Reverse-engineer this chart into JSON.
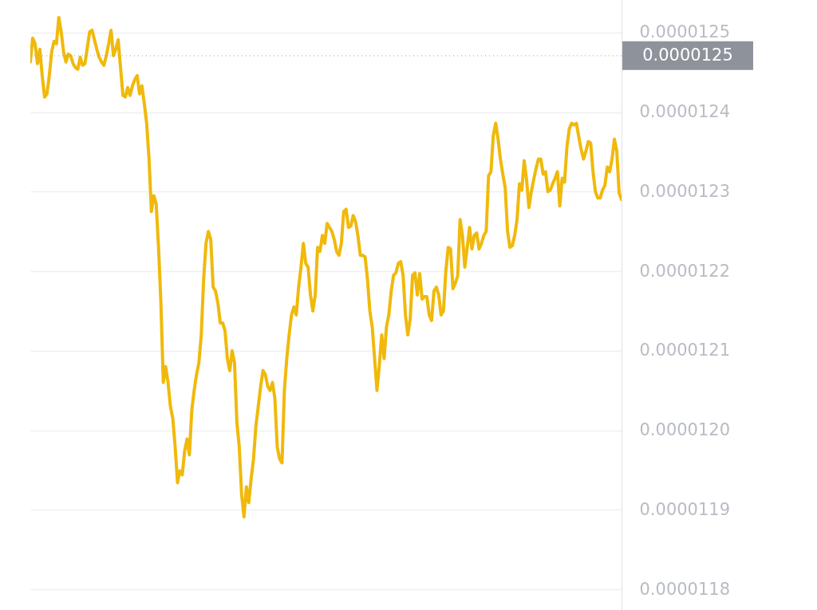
{
  "chart_data": {
    "type": "line",
    "categories": [
      null,
      null,
      null,
      null,
      null,
      null,
      null,
      null,
      null,
      null,
      null,
      null,
      null,
      null,
      null,
      null,
      null,
      null,
      null,
      null,
      null,
      null,
      null,
      null,
      null,
      null,
      null,
      null,
      null,
      null,
      null,
      null,
      null,
      null,
      null,
      null,
      null,
      null,
      null,
      null,
      null,
      null,
      null,
      null,
      null,
      null,
      null,
      null,
      null,
      null,
      null,
      null,
      null,
      null,
      null,
      null,
      null,
      null,
      null,
      null,
      null,
      null,
      null,
      null,
      null,
      null,
      null,
      null,
      null,
      null,
      null,
      null,
      null,
      null,
      null,
      null,
      null,
      null,
      null,
      null,
      null,
      null,
      null,
      null,
      null,
      null,
      null,
      null,
      null,
      null,
      null,
      null,
      null,
      null,
      null,
      null,
      null,
      null,
      null,
      null,
      null,
      null,
      null,
      null,
      null,
      null,
      null,
      null,
      null,
      null,
      null,
      null,
      null,
      null,
      null,
      null,
      null,
      null,
      null,
      null,
      null,
      null,
      null,
      null,
      null,
      null,
      null,
      null,
      null,
      null,
      null,
      null,
      null,
      null,
      null,
      null,
      null,
      null,
      null,
      null,
      null,
      null,
      null,
      null,
      null,
      null,
      null,
      null,
      null,
      null,
      null,
      null,
      null,
      null,
      null,
      null,
      null,
      null,
      null,
      null,
      null,
      null,
      null,
      null,
      null,
      null,
      null,
      null,
      null,
      null,
      null,
      null,
      null,
      null,
      null,
      null,
      null,
      null,
      null,
      null,
      null,
      null,
      null,
      null,
      null,
      null,
      null,
      null,
      null,
      null,
      null,
      null,
      null,
      null,
      null,
      null,
      null,
      null,
      null,
      null,
      null,
      null,
      null,
      null,
      null,
      null,
      null,
      null,
      null,
      null,
      null,
      null,
      null,
      null,
      null,
      null,
      null,
      null,
      null,
      null,
      null,
      null,
      null,
      null,
      null,
      null,
      null,
      null,
      null,
      null,
      null,
      null,
      null,
      null,
      null,
      null,
      null,
      null,
      null,
      null,
      null,
      null,
      null,
      null,
      null,
      null,
      null,
      null,
      null,
      null
    ],
    "series": [
      {
        "color": "#f0b90b",
        "values": [
          1.2463e-05,
          1.2493e-05,
          1.2486e-05,
          1.2461e-05,
          1.2479e-05,
          1.2446e-05,
          1.2419e-05,
          1.2423e-05,
          1.2446e-05,
          1.2476e-05,
          1.2489e-05,
          1.2486e-05,
          1.2519e-05,
          1.2501e-05,
          1.2476e-05,
          1.2463e-05,
          1.2473e-05,
          1.2471e-05,
          1.2461e-05,
          1.2456e-05,
          1.2454e-05,
          1.2469e-05,
          1.2459e-05,
          1.2461e-05,
          1.2481e-05,
          1.2501e-05,
          1.2503e-05,
          1.2491e-05,
          1.2479e-05,
          1.2469e-05,
          1.2463e-05,
          1.2459e-05,
          1.2471e-05,
          1.2486e-05,
          1.2503e-05,
          1.2471e-05,
          1.2479e-05,
          1.2491e-05,
          1.2456e-05,
          1.2421e-05,
          1.2419e-05,
          1.2431e-05,
          1.2421e-05,
          1.2433e-05,
          1.2441e-05,
          1.2446e-05,
          1.2423e-05,
          1.2433e-05,
          1.2411e-05,
          1.2386e-05,
          1.2341e-05,
          1.2275e-05,
          1.2295e-05,
          1.2285e-05,
          1.223e-05,
          1.216e-05,
          1.206e-05,
          1.208e-05,
          1.206e-05,
          1.203e-05,
          1.2015e-05,
          1.1979e-05,
          1.1934e-05,
          1.1949e-05,
          1.1944e-05,
          1.1974e-05,
          1.1989e-05,
          1.1969e-05,
          1.2025e-05,
          1.205e-05,
          1.207e-05,
          1.2085e-05,
          1.212e-05,
          1.219e-05,
          1.2235e-05,
          1.225e-05,
          1.224e-05,
          1.218e-05,
          1.2175e-05,
          1.216e-05,
          1.2135e-05,
          1.2135e-05,
          1.2125e-05,
          1.209e-05,
          1.2075e-05,
          1.21e-05,
          1.2085e-05,
          1.201e-05,
          1.1979e-05,
          1.1919e-05,
          1.1891e-05,
          1.1929e-05,
          1.1909e-05,
          1.1939e-05,
          1.1964e-05,
          1.2005e-05,
          1.203e-05,
          1.2055e-05,
          1.2075e-05,
          1.207e-05,
          1.2055e-05,
          1.205e-05,
          1.206e-05,
          1.204e-05,
          1.1979e-05,
          1.1964e-05,
          1.1959e-05,
          1.205e-05,
          1.209e-05,
          1.212e-05,
          1.2145e-05,
          1.2155e-05,
          1.2145e-05,
          1.218e-05,
          1.2205e-05,
          1.2235e-05,
          1.221e-05,
          1.2205e-05,
          1.217e-05,
          1.215e-05,
          1.217e-05,
          1.223e-05,
          1.2225e-05,
          1.2245e-05,
          1.2235e-05,
          1.226e-05,
          1.2255e-05,
          1.225e-05,
          1.224e-05,
          1.2225e-05,
          1.222e-05,
          1.2235e-05,
          1.2275e-05,
          1.2278e-05,
          1.2255e-05,
          1.2257e-05,
          1.227e-05,
          1.2262e-05,
          1.2244e-05,
          1.222e-05,
          1.222e-05,
          1.2218e-05,
          1.219e-05,
          1.215e-05,
          1.213e-05,
          1.209e-05,
          1.205e-05,
          1.2082e-05,
          1.212e-05,
          1.209e-05,
          1.213e-05,
          1.2145e-05,
          1.2175e-05,
          1.2195e-05,
          1.2198e-05,
          1.221e-05,
          1.2212e-05,
          1.2195e-05,
          1.2145e-05,
          1.212e-05,
          1.214e-05,
          1.2195e-05,
          1.2198e-05,
          1.217e-05,
          1.2197e-05,
          1.2165e-05,
          1.2168e-05,
          1.2168e-05,
          1.2145e-05,
          1.2138e-05,
          1.2175e-05,
          1.218e-05,
          1.217e-05,
          1.2145e-05,
          1.215e-05,
          1.22e-05,
          1.223e-05,
          1.2228e-05,
          1.2178e-05,
          1.2185e-05,
          1.2194e-05,
          1.2265e-05,
          1.2245e-05,
          1.2205e-05,
          1.223e-05,
          1.2255e-05,
          1.2228e-05,
          1.2245e-05,
          1.2248e-05,
          1.2228e-05,
          1.2235e-05,
          1.2245e-05,
          1.225e-05,
          1.232e-05,
          1.2325e-05,
          1.2371e-05,
          1.2386e-05,
          1.2366e-05,
          1.2341e-05,
          1.2322e-05,
          1.2305e-05,
          1.225e-05,
          1.223e-05,
          1.2232e-05,
          1.2245e-05,
          1.2265e-05,
          1.231e-05,
          1.2302e-05,
          1.2339e-05,
          1.2315e-05,
          1.228e-05,
          1.23e-05,
          1.2315e-05,
          1.2329e-05,
          1.2341e-05,
          1.2341e-05,
          1.2322e-05,
          1.2325e-05,
          1.23e-05,
          1.2302e-05,
          1.231e-05,
          1.2317e-05,
          1.2325e-05,
          1.2282e-05,
          1.2317e-05,
          1.2312e-05,
          1.2356e-05,
          1.2379e-05,
          1.2386e-05,
          1.2384e-05,
          1.2386e-05,
          1.2369e-05,
          1.2353e-05,
          1.2341e-05,
          1.2351e-05,
          1.2363e-05,
          1.2361e-05,
          1.2325e-05,
          1.23e-05,
          1.2292e-05,
          1.2292e-05,
          1.2302e-05,
          1.2308e-05,
          1.2331e-05,
          1.2325e-05,
          1.2341e-05,
          1.2366e-05,
          1.2351e-05,
          1.2298e-05,
          1.229e-05
        ]
      }
    ],
    "ylim": [
      1.1774e-05,
      1.2541e-05
    ],
    "yticks": [
      {
        "value": 1.18e-05,
        "label": "0.0000118"
      },
      {
        "value": 1.19e-05,
        "label": "0.0000119"
      },
      {
        "value": 1.2e-05,
        "label": "0.0000120"
      },
      {
        "value": 1.21e-05,
        "label": "0.0000121"
      },
      {
        "value": 1.22e-05,
        "label": "0.0000122"
      },
      {
        "value": 1.23e-05,
        "label": "0.0000123"
      },
      {
        "value": 1.24e-05,
        "label": "0.0000124"
      },
      {
        "value": 1.25e-05,
        "label": "0.0000125"
      }
    ],
    "grid": "y",
    "tick_labels": "y",
    "ref_lines": [
      {
        "axis": "y",
        "value": 1.2471e-05,
        "label": "0.0000125",
        "color": "#8e939b",
        "line_style": "dotted"
      }
    ]
  }
}
